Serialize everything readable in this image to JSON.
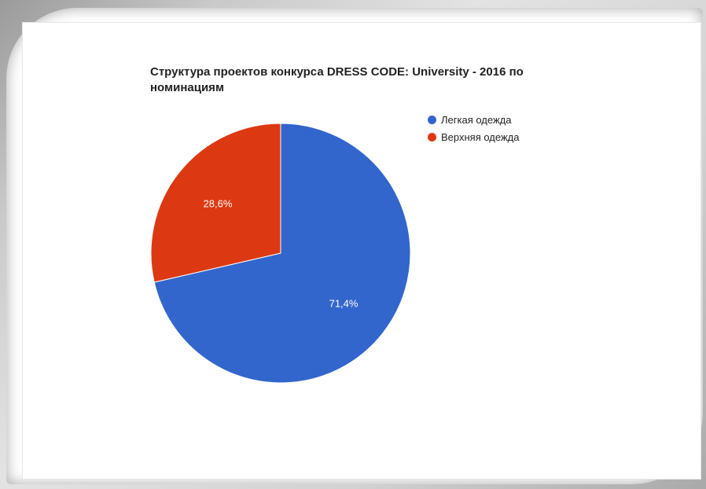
{
  "chart_data": {
    "type": "pie",
    "title": "Структура проектов конкурса DRESS CODE: University - 2016 по номинациям",
    "categories": [
      "Легкая одежда",
      "Верхняя одежда"
    ],
    "values": [
      71.4,
      28.6
    ],
    "value_labels": [
      "71,4%",
      "28,6%"
    ],
    "colors": [
      "#3366cc",
      "#dc3912"
    ],
    "legend_position": "right"
  }
}
